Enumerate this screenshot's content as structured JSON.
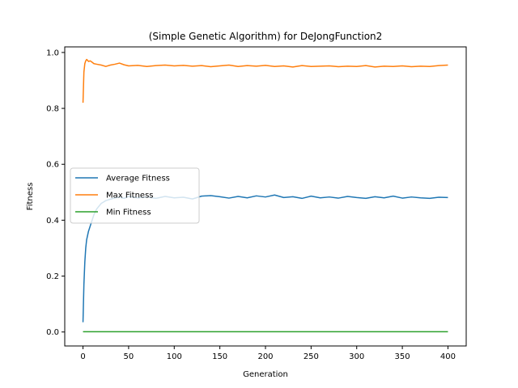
{
  "chart_data": {
    "type": "line",
    "title": "(Simple Genetic Algorithm) for DeJongFunction2",
    "xlabel": "Generation",
    "ylabel": "Fitness",
    "xlim": [
      -20,
      420
    ],
    "ylim": [
      -0.05,
      1.02
    ],
    "xticks": [
      0,
      50,
      100,
      150,
      200,
      250,
      300,
      350,
      400
    ],
    "yticks": [
      0.0,
      0.2,
      0.4,
      0.6,
      0.8,
      1.0
    ],
    "ytick_labels": [
      "0.0",
      "0.2",
      "0.4",
      "0.6",
      "0.8",
      "1.0"
    ],
    "grid": false,
    "legend_position": "center-left",
    "x": [
      0,
      1,
      2,
      3,
      4,
      5,
      6,
      8,
      10,
      12,
      15,
      20,
      25,
      30,
      35,
      40,
      45,
      50,
      60,
      70,
      80,
      90,
      100,
      110,
      120,
      130,
      140,
      150,
      160,
      170,
      180,
      190,
      200,
      210,
      220,
      230,
      240,
      250,
      260,
      270,
      280,
      290,
      300,
      310,
      320,
      330,
      340,
      350,
      360,
      370,
      380,
      390,
      400
    ],
    "series": [
      {
        "name": "Average Fitness",
        "color": "#1f77b4",
        "values": [
          0.035,
          0.17,
          0.25,
          0.3,
          0.33,
          0.345,
          0.36,
          0.38,
          0.4,
          0.42,
          0.44,
          0.46,
          0.47,
          0.475,
          0.48,
          0.482,
          0.478,
          0.485,
          0.48,
          0.483,
          0.478,
          0.485,
          0.48,
          0.482,
          0.476,
          0.486,
          0.488,
          0.484,
          0.479,
          0.485,
          0.48,
          0.487,
          0.483,
          0.49,
          0.481,
          0.484,
          0.478,
          0.486,
          0.48,
          0.483,
          0.479,
          0.485,
          0.481,
          0.478,
          0.484,
          0.48,
          0.486,
          0.479,
          0.483,
          0.48,
          0.478,
          0.482,
          0.481
        ]
      },
      {
        "name": "Max Fitness",
        "color": "#ff7f0e",
        "values": [
          0.82,
          0.93,
          0.96,
          0.97,
          0.975,
          0.972,
          0.968,
          0.97,
          0.965,
          0.96,
          0.958,
          0.955,
          0.95,
          0.955,
          0.958,
          0.962,
          0.956,
          0.952,
          0.954,
          0.95,
          0.953,
          0.955,
          0.952,
          0.954,
          0.951,
          0.953,
          0.949,
          0.952,
          0.955,
          0.95,
          0.953,
          0.951,
          0.954,
          0.95,
          0.952,
          0.948,
          0.953,
          0.95,
          0.951,
          0.952,
          0.949,
          0.951,
          0.95,
          0.953,
          0.948,
          0.951,
          0.95,
          0.952,
          0.949,
          0.951,
          0.95,
          0.953,
          0.955
        ]
      },
      {
        "name": "Min Fitness",
        "color": "#2ca02c",
        "values": [
          0.001,
          0.001,
          0.001,
          0.001,
          0.001,
          0.001,
          0.001,
          0.001,
          0.001,
          0.001,
          0.001,
          0.001,
          0.001,
          0.001,
          0.001,
          0.001,
          0.001,
          0.001,
          0.001,
          0.001,
          0.001,
          0.001,
          0.001,
          0.001,
          0.001,
          0.001,
          0.001,
          0.001,
          0.001,
          0.001,
          0.001,
          0.001,
          0.001,
          0.001,
          0.001,
          0.001,
          0.001,
          0.001,
          0.001,
          0.001,
          0.001,
          0.001,
          0.001,
          0.001,
          0.001,
          0.001,
          0.001,
          0.001,
          0.001,
          0.001,
          0.001,
          0.001,
          0.001
        ]
      }
    ]
  }
}
